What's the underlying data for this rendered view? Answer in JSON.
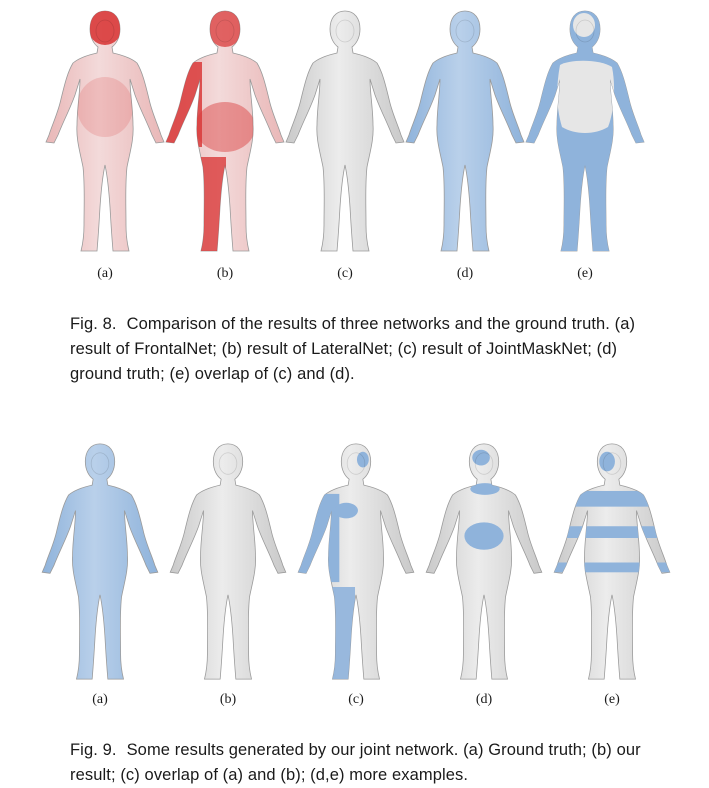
{
  "figures": [
    {
      "number": "Fig. 8.",
      "caption": "Comparison of the results of three networks and the ground truth. (a) result of FrontalNet; (b) result of LateralNet; (c) result of JointMaskNet; (d) ground truth; (e) overlap of (c) and (d).",
      "panels": [
        {
          "label": "(a)",
          "style": "heat-mild"
        },
        {
          "label": "(b)",
          "style": "heat-strong"
        },
        {
          "label": "(c)",
          "style": "gray"
        },
        {
          "label": "(d)",
          "style": "blue"
        },
        {
          "label": "(e)",
          "style": "overlap"
        }
      ]
    },
    {
      "number": "Fig. 9.",
      "caption": "Some results generated by our joint network. (a) Ground truth; (b) our result; (c) overlap of (a) and (b); (d,e) more examples.",
      "panels": [
        {
          "label": "(a)",
          "style": "blue"
        },
        {
          "label": "(b)",
          "style": "gray"
        },
        {
          "label": "(c)",
          "style": "overlap-left"
        },
        {
          "label": "(d)",
          "style": "overlap-belly"
        },
        {
          "label": "(e)",
          "style": "overlap-bands"
        }
      ]
    }
  ],
  "colors": {
    "mesh_gray": "#c9c9c9",
    "mesh_blue": "#8fb3db",
    "heat_red": "#d93a3a",
    "heat_pink": "#e9b7b7",
    "outline": "#9a9a9a"
  }
}
